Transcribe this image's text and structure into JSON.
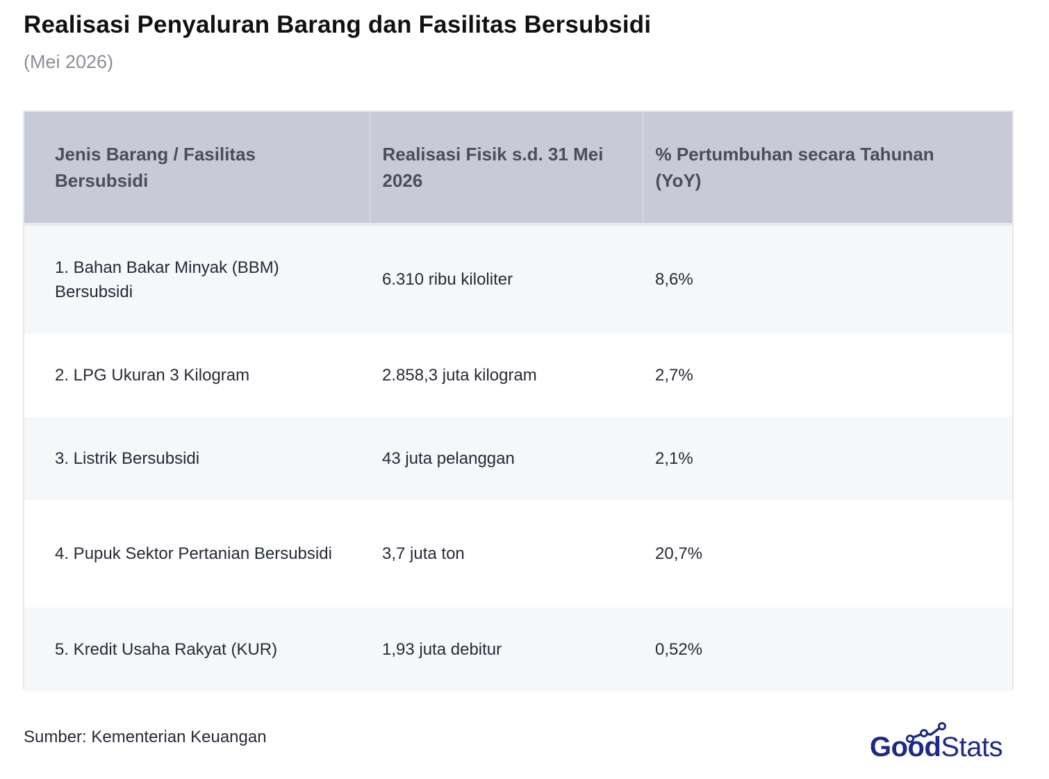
{
  "title": "Realisasi Penyaluran Barang dan Fasilitas Bersubsidi",
  "subtitle": "(Mei 2026)",
  "chart_data": {
    "type": "table",
    "columns": [
      "Jenis Barang / Fasilitas Bersubsidi",
      "Realisasi Fisik s.d. 31 Mei 2026",
      "% Pertumbuhan secara Tahunan (YoY)"
    ],
    "rows": [
      [
        "1. Bahan Bakar Minyak (BBM) Bersubsidi",
        "6.310 ribu kiloliter",
        "8,6%"
      ],
      [
        "2. LPG Ukuran 3 Kilogram",
        "2.858,3 juta kilogram",
        "2,7%"
      ],
      [
        "3. Listrik Bersubsidi",
        "43 juta pelanggan",
        "2,1%"
      ],
      [
        "4. Pupuk Sektor Pertanian Bersubsidi",
        "3,7 juta ton",
        "20,7%"
      ],
      [
        "5. Kredit Usaha Rakyat (KUR)",
        "1,93 juta debitur",
        "0,52%"
      ]
    ]
  },
  "source": "Sumber: Kementerian Keuangan",
  "logo": {
    "brand_bold": "Good",
    "brand_regular": "Stats",
    "color": "#1c2a86",
    "icon": "trend-line-icon"
  },
  "colors": {
    "header_bg": "#c9cad7",
    "row_alt_bg": "#f6f7f9"
  }
}
